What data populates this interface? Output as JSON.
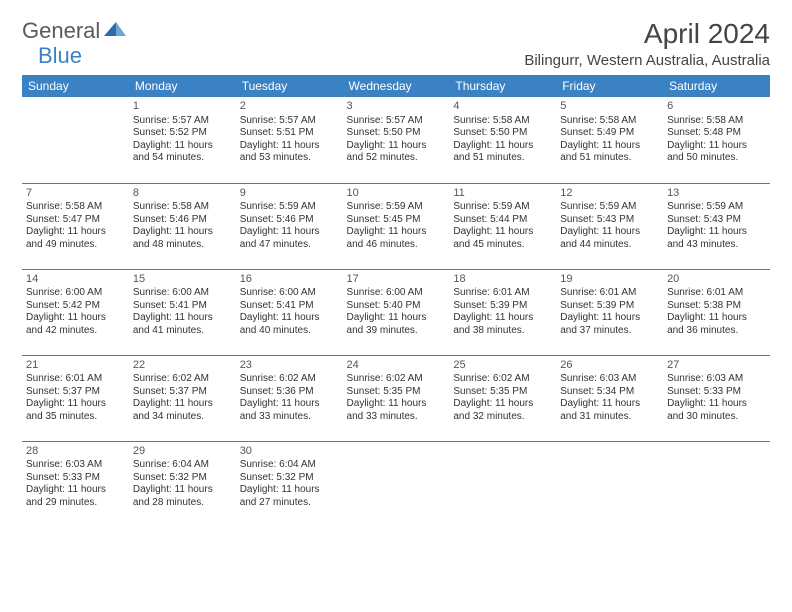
{
  "logo": {
    "text1": "General",
    "text2": "Blue"
  },
  "title": "April 2024",
  "location": "Bilingurr, Western Australia, Australia",
  "colors": {
    "header_bg": "#3b82c4",
    "header_text": "#ffffff",
    "border": "#3b82c4",
    "text": "#333333",
    "logo_gray": "#5a5a5a",
    "logo_blue": "#3b82c4",
    "background": "#ffffff"
  },
  "day_headers": [
    "Sunday",
    "Monday",
    "Tuesday",
    "Wednesday",
    "Thursday",
    "Friday",
    "Saturday"
  ],
  "weeks": [
    [
      null,
      {
        "n": "1",
        "sr": "5:57 AM",
        "ss": "5:52 PM",
        "dl": "11 hours and 54 minutes."
      },
      {
        "n": "2",
        "sr": "5:57 AM",
        "ss": "5:51 PM",
        "dl": "11 hours and 53 minutes."
      },
      {
        "n": "3",
        "sr": "5:57 AM",
        "ss": "5:50 PM",
        "dl": "11 hours and 52 minutes."
      },
      {
        "n": "4",
        "sr": "5:58 AM",
        "ss": "5:50 PM",
        "dl": "11 hours and 51 minutes."
      },
      {
        "n": "5",
        "sr": "5:58 AM",
        "ss": "5:49 PM",
        "dl": "11 hours and 51 minutes."
      },
      {
        "n": "6",
        "sr": "5:58 AM",
        "ss": "5:48 PM",
        "dl": "11 hours and 50 minutes."
      }
    ],
    [
      {
        "n": "7",
        "sr": "5:58 AM",
        "ss": "5:47 PM",
        "dl": "11 hours and 49 minutes."
      },
      {
        "n": "8",
        "sr": "5:58 AM",
        "ss": "5:46 PM",
        "dl": "11 hours and 48 minutes."
      },
      {
        "n": "9",
        "sr": "5:59 AM",
        "ss": "5:46 PM",
        "dl": "11 hours and 47 minutes."
      },
      {
        "n": "10",
        "sr": "5:59 AM",
        "ss": "5:45 PM",
        "dl": "11 hours and 46 minutes."
      },
      {
        "n": "11",
        "sr": "5:59 AM",
        "ss": "5:44 PM",
        "dl": "11 hours and 45 minutes."
      },
      {
        "n": "12",
        "sr": "5:59 AM",
        "ss": "5:43 PM",
        "dl": "11 hours and 44 minutes."
      },
      {
        "n": "13",
        "sr": "5:59 AM",
        "ss": "5:43 PM",
        "dl": "11 hours and 43 minutes."
      }
    ],
    [
      {
        "n": "14",
        "sr": "6:00 AM",
        "ss": "5:42 PM",
        "dl": "11 hours and 42 minutes."
      },
      {
        "n": "15",
        "sr": "6:00 AM",
        "ss": "5:41 PM",
        "dl": "11 hours and 41 minutes."
      },
      {
        "n": "16",
        "sr": "6:00 AM",
        "ss": "5:41 PM",
        "dl": "11 hours and 40 minutes."
      },
      {
        "n": "17",
        "sr": "6:00 AM",
        "ss": "5:40 PM",
        "dl": "11 hours and 39 minutes."
      },
      {
        "n": "18",
        "sr": "6:01 AM",
        "ss": "5:39 PM",
        "dl": "11 hours and 38 minutes."
      },
      {
        "n": "19",
        "sr": "6:01 AM",
        "ss": "5:39 PM",
        "dl": "11 hours and 37 minutes."
      },
      {
        "n": "20",
        "sr": "6:01 AM",
        "ss": "5:38 PM",
        "dl": "11 hours and 36 minutes."
      }
    ],
    [
      {
        "n": "21",
        "sr": "6:01 AM",
        "ss": "5:37 PM",
        "dl": "11 hours and 35 minutes."
      },
      {
        "n": "22",
        "sr": "6:02 AM",
        "ss": "5:37 PM",
        "dl": "11 hours and 34 minutes."
      },
      {
        "n": "23",
        "sr": "6:02 AM",
        "ss": "5:36 PM",
        "dl": "11 hours and 33 minutes."
      },
      {
        "n": "24",
        "sr": "6:02 AM",
        "ss": "5:35 PM",
        "dl": "11 hours and 33 minutes."
      },
      {
        "n": "25",
        "sr": "6:02 AM",
        "ss": "5:35 PM",
        "dl": "11 hours and 32 minutes."
      },
      {
        "n": "26",
        "sr": "6:03 AM",
        "ss": "5:34 PM",
        "dl": "11 hours and 31 minutes."
      },
      {
        "n": "27",
        "sr": "6:03 AM",
        "ss": "5:33 PM",
        "dl": "11 hours and 30 minutes."
      }
    ],
    [
      {
        "n": "28",
        "sr": "6:03 AM",
        "ss": "5:33 PM",
        "dl": "11 hours and 29 minutes."
      },
      {
        "n": "29",
        "sr": "6:04 AM",
        "ss": "5:32 PM",
        "dl": "11 hours and 28 minutes."
      },
      {
        "n": "30",
        "sr": "6:04 AM",
        "ss": "5:32 PM",
        "dl": "11 hours and 27 minutes."
      },
      null,
      null,
      null,
      null
    ]
  ],
  "labels": {
    "sunrise": "Sunrise: ",
    "sunset": "Sunset: ",
    "daylight": "Daylight: "
  }
}
